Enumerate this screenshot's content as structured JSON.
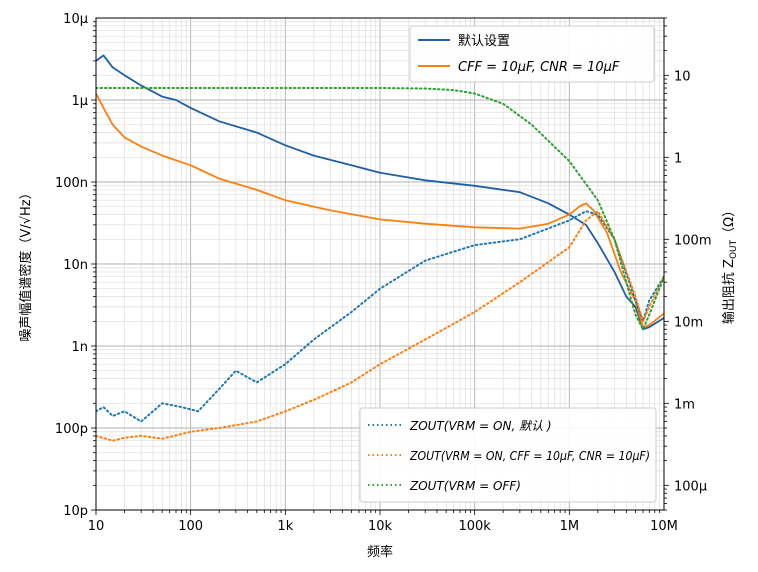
{
  "chart_data": {
    "type": "line",
    "xlabel": "频率",
    "ylabel_left": "噪声幅值谱密度（V/√Hz）",
    "ylabel_right": "输出阻抗 Z",
    "ylabel_right_sub": "OUT",
    "ylabel_right_unit": "（Ω）",
    "x_scale": "log",
    "y_left_scale": "log",
    "y_right_scale": "log",
    "xlim": [
      10,
      10000000
    ],
    "ylim_left": [
      1e-11,
      1e-05
    ],
    "ylim_right": [
      5e-05,
      50
    ],
    "grid": true,
    "x_ticks": [
      {
        "value": 10,
        "label": "10"
      },
      {
        "value": 100,
        "label": "100"
      },
      {
        "value": 1000,
        "label": "1k"
      },
      {
        "value": 10000,
        "label": "10k"
      },
      {
        "value": 100000,
        "label": "100k"
      },
      {
        "value": 1000000,
        "label": "1M"
      },
      {
        "value": 10000000,
        "label": "10M"
      }
    ],
    "y_left_ticks": [
      {
        "value": 1e-05,
        "label": "10μ"
      },
      {
        "value": 1e-06,
        "label": "1μ"
      },
      {
        "value": 1e-07,
        "label": "100n"
      },
      {
        "value": 1e-08,
        "label": "10n"
      },
      {
        "value": 1e-09,
        "label": "1n"
      },
      {
        "value": 1e-10,
        "label": "100p"
      },
      {
        "value": 1e-11,
        "label": "10p"
      }
    ],
    "y_right_ticks": [
      {
        "value": 10,
        "label": "10"
      },
      {
        "value": 1,
        "label": "1"
      },
      {
        "value": 0.1,
        "label": "100m"
      },
      {
        "value": 0.01,
        "label": "10m"
      },
      {
        "value": 0.001,
        "label": "1m"
      },
      {
        "value": 0.0001,
        "label": "100μ"
      }
    ],
    "legend_top": {
      "placement": "top-right",
      "entries": [
        {
          "label": "默认设置",
          "color": "#1f5fa6",
          "style": "solid"
        },
        {
          "label": "CFF = 10μF, CNR = 10μF",
          "color": "#ff7f0e",
          "style": "solid"
        }
      ]
    },
    "legend_bottom": {
      "placement": "lower-right",
      "entries": [
        {
          "label": "ZOUT(VRM = ON, 默认 )",
          "color": "#1f77b4",
          "style": "dotted"
        },
        {
          "label": "ZOUT(VRM = ON, CFF = 10μF, CNR = 10μF)",
          "color": "#ff7f0e",
          "style": "dotted"
        },
        {
          "label": "ZOUT(VRM = OFF)",
          "color": "#2ca02c",
          "style": "dotted"
        }
      ]
    },
    "series": [
      {
        "name": "默认设置",
        "axis": "left",
        "color": "#1f5fa6",
        "style": "solid",
        "x": [
          10,
          12,
          15,
          20,
          30,
          50,
          70,
          100,
          200,
          500,
          1000,
          2000,
          5000,
          10000,
          30000,
          100000,
          300000,
          600000,
          1000000,
          1500000,
          2000000,
          3000000,
          4000000,
          5000000,
          6000000,
          7000000,
          10000000
        ],
        "y": [
          3e-06,
          3.5e-06,
          2.5e-06,
          2e-06,
          1.5e-06,
          1.1e-06,
          1e-06,
          8e-07,
          5.5e-07,
          4e-07,
          2.8e-07,
          2.1e-07,
          1.6e-07,
          1.3e-07,
          1.05e-07,
          9e-08,
          7.5e-08,
          5.5e-08,
          4e-08,
          3e-08,
          1.8e-08,
          8e-09,
          4e-09,
          3e-09,
          1.6e-09,
          1.7e-09,
          2.2e-09
        ]
      },
      {
        "name": "CFF = 10μF, CNR = 10μF",
        "axis": "left",
        "color": "#ff7f0e",
        "style": "solid",
        "x": [
          10,
          12,
          15,
          20,
          30,
          50,
          100,
          200,
          500,
          1000,
          3000,
          10000,
          30000,
          100000,
          300000,
          600000,
          1000000,
          1300000,
          1500000,
          1800000,
          2500000,
          3500000,
          5000000,
          6000000,
          7000000,
          10000000
        ],
        "y": [
          1.2e-06,
          8e-07,
          5e-07,
          3.5e-07,
          2.7e-07,
          2.1e-07,
          1.6e-07,
          1.1e-07,
          8e-08,
          6e-08,
          4.5e-08,
          3.5e-08,
          3.1e-08,
          2.8e-08,
          2.7e-08,
          3.1e-08,
          4e-08,
          5.1e-08,
          5.5e-08,
          4.5e-08,
          2.4e-08,
          8e-09,
          3.5e-09,
          1.7e-09,
          1.8e-09,
          2.5e-09
        ]
      },
      {
        "name": "ZOUT(VRM = ON, 默认 )",
        "axis": "right",
        "color": "#1f77b4",
        "style": "dotted",
        "x": [
          10,
          12,
          15,
          20,
          30,
          50,
          80,
          120,
          200,
          300,
          500,
          1000,
          2000,
          5000,
          10000,
          30000,
          100000,
          300000,
          1000000,
          1500000,
          2000000,
          3000000,
          5000000,
          6000000,
          7000000,
          10000000
        ],
        "y": [
          0.0008,
          0.0009,
          0.0007,
          0.0008,
          0.0006,
          0.001,
          0.0009,
          0.0008,
          0.0015,
          0.0025,
          0.0018,
          0.003,
          0.006,
          0.013,
          0.025,
          0.055,
          0.085,
          0.1,
          0.17,
          0.22,
          0.2,
          0.1,
          0.018,
          0.01,
          0.018,
          0.035
        ]
      },
      {
        "name": "ZOUT(VRM = ON, CFF = 10μF, CNR = 10μF)",
        "axis": "right",
        "color": "#ff7f0e",
        "style": "dotted",
        "x": [
          10,
          15,
          20,
          30,
          50,
          100,
          200,
          500,
          1000,
          2000,
          5000,
          10000,
          30000,
          100000,
          300000,
          1000000,
          1500000,
          2000000,
          3000000,
          5000000,
          6000000,
          7000000,
          10000000
        ],
        "y": [
          0.0004,
          0.00035,
          0.00038,
          0.0004,
          0.00037,
          0.00045,
          0.0005,
          0.0006,
          0.0008,
          0.0011,
          0.0018,
          0.003,
          0.006,
          0.013,
          0.03,
          0.08,
          0.17,
          0.22,
          0.1,
          0.02,
          0.01,
          0.015,
          0.035
        ]
      },
      {
        "name": "ZOUT(VRM = OFF)",
        "axis": "right",
        "color": "#2ca02c",
        "style": "dotted",
        "x": [
          10,
          100,
          1000,
          10000,
          30000,
          60000,
          100000,
          200000,
          400000,
          1000000,
          2000000,
          3000000,
          4000000,
          5000000,
          6000000,
          7000000,
          10000000
        ],
        "y": [
          7,
          7,
          7,
          7,
          6.9,
          6.6,
          6,
          4.5,
          2.5,
          0.9,
          0.3,
          0.1,
          0.03,
          0.012,
          0.008,
          0.012,
          0.035
        ]
      }
    ]
  }
}
